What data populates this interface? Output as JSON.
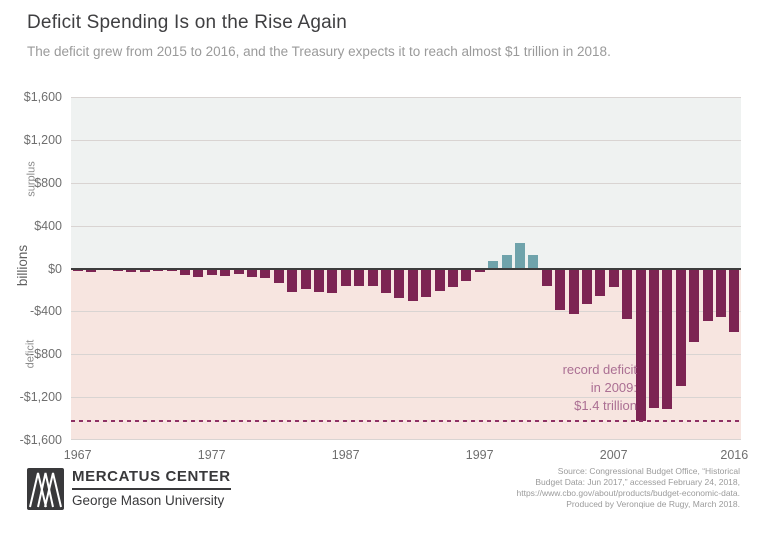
{
  "header": {
    "title": "Deficit Spending Is on the Rise Again",
    "subtitle": "The deficit grew from 2015 to 2016, and the Treasury expects it to reach almost $1 trillion in 2018."
  },
  "chart_data": {
    "type": "bar",
    "title": "Deficit Spending Is on the Rise Again",
    "ylabel": "billions",
    "ylim": [
      -1600,
      1600
    ],
    "x": [
      1967,
      1968,
      1969,
      1970,
      1971,
      1972,
      1973,
      1974,
      1975,
      1976,
      1977,
      1978,
      1979,
      1980,
      1981,
      1982,
      1983,
      1984,
      1985,
      1986,
      1987,
      1988,
      1989,
      1990,
      1991,
      1992,
      1993,
      1994,
      1995,
      1996,
      1997,
      1998,
      1999,
      2000,
      2001,
      2002,
      2003,
      2004,
      2005,
      2006,
      2007,
      2008,
      2009,
      2010,
      2011,
      2012,
      2013,
      2014,
      2015,
      2016
    ],
    "values": [
      -8.6,
      -25.2,
      3.2,
      -2.8,
      -23.0,
      -23.4,
      -14.9,
      -6.1,
      -53.2,
      -73.7,
      -53.7,
      -59.2,
      -40.7,
      -73.8,
      -79.0,
      -128.0,
      -207.8,
      -185.4,
      -212.3,
      -221.2,
      -149.7,
      -155.2,
      -152.6,
      -221.0,
      -269.2,
      -290.3,
      -255.1,
      -203.2,
      -164.0,
      -107.4,
      -21.9,
      69.3,
      125.6,
      236.2,
      128.2,
      -157.8,
      -377.6,
      -412.7,
      -318.3,
      -248.2,
      -160.7,
      -458.6,
      -1412.7,
      -1294.4,
      -1299.6,
      -1087.0,
      -679.5,
      -484.6,
      -438.5,
      -585.6
    ],
    "y_ticks": [
      {
        "label": "$1,600",
        "value": 1600
      },
      {
        "label": "$1,200",
        "value": 1200
      },
      {
        "label": "$800",
        "value": 800
      },
      {
        "label": "$400",
        "value": 400
      },
      {
        "label": "$0",
        "value": 0
      },
      {
        "label": "-$400",
        "value": -400
      },
      {
        "label": "-$800",
        "value": -800
      },
      {
        "label": "-$1,200",
        "value": -1200
      },
      {
        "label": "-$1,600",
        "value": -1600
      }
    ],
    "x_ticks": [
      {
        "label": "1967",
        "year": 1967
      },
      {
        "label": "1977",
        "year": 1977
      },
      {
        "label": "1987",
        "year": 1987
      },
      {
        "label": "1997",
        "year": 1997
      },
      {
        "label": "2007",
        "year": 2007
      },
      {
        "label": "2016",
        "year": 2016
      }
    ],
    "axis_labels": {
      "surplus": "surplus",
      "billions": "billions",
      "deficit": "deficit"
    },
    "annotation": {
      "lines": [
        "record deficit",
        "in 2009:",
        "$1.4 trillion"
      ]
    },
    "record_line_value": -1412.7,
    "colors": {
      "deficit_bar": "#7c2453",
      "surplus_bar": "#6fa3ab",
      "surplus_background": "#eff2f1",
      "deficit_background": "#f7e5e0",
      "record_line": "#8e3063",
      "annotation_text": "#ab6f93"
    },
    "legend": null,
    "grid": true
  },
  "footer": {
    "logo_title": "MERCATUS CENTER",
    "logo_subtitle": "George Mason University",
    "source_lines": [
      "Source: Congressional Budget Office, “Historical",
      "Budget Data: Jun 2017,” accessed February 24, 2018,",
      "https://www.cbo.gov/about/products/budget-economic-data.",
      "Produced by Veronqiue de Rugy, March 2018."
    ]
  }
}
